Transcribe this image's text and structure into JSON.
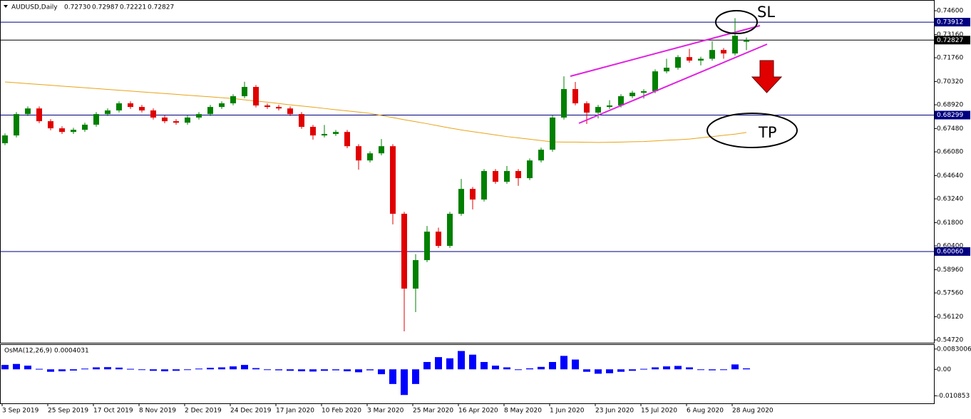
{
  "chart_data": [
    {
      "type": "candlestick",
      "title": "AUDUSD,Daily",
      "ohlc": [
        {
          "value": 0.7273,
          "label": "0.72730"
        },
        {
          "value": 0.72987,
          "label": "0.72987"
        },
        {
          "value": 0.72221,
          "label": "0.72221"
        },
        {
          "value": 0.72827,
          "label": "0.72827"
        }
      ],
      "categories": [
        "3 Sep 2019",
        null,
        null,
        null,
        "25 Sep 2019",
        null,
        null,
        null,
        "17 Oct 2019",
        null,
        null,
        null,
        "8 Nov 2019",
        null,
        null,
        null,
        "2 Dec 2019",
        null,
        null,
        null,
        "24 Dec 2019",
        null,
        null,
        null,
        "17 Jan 2020",
        null,
        null,
        null,
        "10 Feb 2020",
        null,
        null,
        null,
        "3 Mar 2020",
        null,
        null,
        null,
        "25 Mar 2020",
        null,
        null,
        null,
        "16 Apr 2020",
        null,
        null,
        null,
        "8 May 2020",
        null,
        null,
        null,
        "1 Jun 2020",
        null,
        null,
        null,
        "23 Jun 2020",
        null,
        null,
        null,
        "15 Jul 2020",
        null,
        null,
        null,
        "6 Aug 2020",
        null,
        null,
        null,
        "28 Aug 2020",
        null
      ],
      "open": [
        0.666,
        0.6707,
        0.6836,
        0.687,
        0.6793,
        0.675,
        0.6728,
        0.6741,
        0.6772,
        0.6836,
        0.6858,
        0.6901,
        0.6879,
        0.6858,
        0.6815,
        0.6793,
        0.6784,
        0.6815,
        0.6836,
        0.6879,
        0.6901,
        0.6944,
        0.7,
        0.6888,
        0.6879,
        0.687,
        0.6836,
        0.6759,
        0.6707,
        0.6716,
        0.6728,
        0.6642,
        0.6556,
        0.6599,
        0.6642,
        0.6234,
        0.5782,
        0.5954,
        0.6126,
        0.604,
        0.6234,
        0.6384,
        0.632,
        0.6492,
        0.6427,
        0.6492,
        0.6449,
        0.6556,
        0.6621,
        0.6815,
        0.6987,
        0.6901,
        0.6845,
        0.6879,
        0.6888,
        0.6944,
        0.6965,
        0.6974,
        0.7094,
        0.7116,
        0.718,
        0.7159,
        0.717,
        0.7223,
        0.7202,
        0.7273
      ],
      "high": [
        0.6719,
        0.6848,
        0.6882,
        0.6882,
        0.6805,
        0.6762,
        0.6753,
        0.6784,
        0.6848,
        0.687,
        0.6913,
        0.6913,
        0.6891,
        0.687,
        0.6827,
        0.6805,
        0.6827,
        0.6848,
        0.6891,
        0.6913,
        0.6956,
        0.7031,
        0.7012,
        0.69,
        0.6891,
        0.6882,
        0.6848,
        0.6771,
        0.677,
        0.674,
        0.674,
        0.6654,
        0.6611,
        0.6685,
        0.6654,
        0.6246,
        0.599,
        0.616,
        0.615,
        0.6246,
        0.6444,
        0.6396,
        0.6504,
        0.6504,
        0.6522,
        0.6504,
        0.6568,
        0.6633,
        0.6827,
        0.7064,
        0.703,
        0.6913,
        0.6891,
        0.692,
        0.6956,
        0.6977,
        0.6986,
        0.7106,
        0.717,
        0.7192,
        0.723,
        0.7182,
        0.7276,
        0.7235,
        0.7415,
        0.72987
      ],
      "low": [
        0.6648,
        0.6695,
        0.6824,
        0.6781,
        0.6738,
        0.6716,
        0.6716,
        0.6729,
        0.676,
        0.6824,
        0.6846,
        0.6867,
        0.6846,
        0.6803,
        0.6781,
        0.6772,
        0.6772,
        0.6803,
        0.6824,
        0.6867,
        0.6889,
        0.6932,
        0.6876,
        0.6867,
        0.6858,
        0.6824,
        0.6747,
        0.6682,
        0.6695,
        0.6704,
        0.663,
        0.65,
        0.6544,
        0.6587,
        0.617,
        0.5524,
        0.564,
        0.5942,
        0.6028,
        0.6028,
        0.6222,
        0.626,
        0.6308,
        0.6415,
        0.6415,
        0.6403,
        0.6437,
        0.6544,
        0.6609,
        0.6803,
        0.6889,
        0.6776,
        0.681,
        0.6867,
        0.6876,
        0.6932,
        0.693,
        0.6962,
        0.7082,
        0.7104,
        0.7147,
        0.713,
        0.7158,
        0.717,
        0.719,
        0.72221
      ],
      "close": [
        0.6707,
        0.6836,
        0.687,
        0.6793,
        0.675,
        0.6728,
        0.6741,
        0.6772,
        0.6836,
        0.6858,
        0.6901,
        0.6879,
        0.6858,
        0.6815,
        0.6793,
        0.6784,
        0.6815,
        0.6836,
        0.6879,
        0.6901,
        0.6944,
        0.7,
        0.6888,
        0.6879,
        0.687,
        0.6836,
        0.6759,
        0.6707,
        0.6716,
        0.6728,
        0.6642,
        0.6556,
        0.6599,
        0.6642,
        0.6234,
        0.5782,
        0.5954,
        0.6126,
        0.604,
        0.6234,
        0.6384,
        0.632,
        0.6492,
        0.6427,
        0.6492,
        0.6449,
        0.6556,
        0.6621,
        0.6815,
        0.6987,
        0.6901,
        0.6845,
        0.6879,
        0.6888,
        0.6944,
        0.6965,
        0.6974,
        0.7094,
        0.7116,
        0.718,
        0.7159,
        0.717,
        0.7223,
        0.7202,
        0.7309,
        0.72827
      ],
      "up_color": "#008000",
      "down_color": "#e00000",
      "ma": {
        "color": "#e8a317",
        "values": [
          0.703,
          0.7025,
          0.702,
          0.7015,
          0.701,
          0.7005,
          0.7,
          0.6995,
          0.699,
          0.6985,
          0.698,
          0.6975,
          0.697,
          0.6965,
          0.696,
          0.6955,
          0.695,
          0.6945,
          0.694,
          0.6935,
          0.693,
          0.6922,
          0.6915,
          0.6908,
          0.69,
          0.6892,
          0.6885,
          0.6878,
          0.687,
          0.6862,
          0.6855,
          0.6848,
          0.684,
          0.6828,
          0.6815,
          0.6802,
          0.679,
          0.6778,
          0.6765,
          0.6752,
          0.674,
          0.673,
          0.672,
          0.671,
          0.67,
          0.6692,
          0.6684,
          0.6676,
          0.6668,
          0.6667,
          0.6667,
          0.6666,
          0.6665,
          0.6666,
          0.6667,
          0.6669,
          0.667,
          0.6674,
          0.6678,
          0.6681,
          0.6685,
          0.6693,
          0.67,
          0.6708,
          0.6715,
          0.6725
        ]
      },
      "hlines": [
        {
          "value": 0.73912,
          "label": "0.73912",
          "color": "#000080"
        },
        {
          "value": 0.72827,
          "label": "0.72827",
          "color": "#000000"
        },
        {
          "value": 0.68299,
          "label": "0.68299",
          "color": "#000080"
        },
        {
          "value": 0.6006,
          "label": "0.60060",
          "color": "#000080"
        }
      ],
      "ylim": [
        0.5455,
        0.7512
      ],
      "yticks": [
        {
          "value": 0.746,
          "label": "0.74600"
        },
        {
          "value": 0.7316,
          "label": "0.73160"
        },
        {
          "value": 0.7176,
          "label": "0.71760"
        },
        {
          "value": 0.7032,
          "label": "0.70320"
        },
        {
          "value": 0.6892,
          "label": "0.68920"
        },
        {
          "value": 0.6748,
          "label": "0.67480"
        },
        {
          "value": 0.6608,
          "label": "0.66080"
        },
        {
          "value": 0.6464,
          "label": "0.64640"
        },
        {
          "value": 0.6324,
          "label": "0.63240"
        },
        {
          "value": 0.618,
          "label": "0.61800"
        },
        {
          "value": 0.604,
          "label": "0.60400"
        },
        {
          "value": 0.5896,
          "label": "0.58960"
        },
        {
          "value": 0.5756,
          "label": "0.57560"
        },
        {
          "value": 0.5612,
          "label": "0.56120"
        },
        {
          "value": 0.5472,
          "label": "0.54720"
        }
      ],
      "annotations": [
        "SL",
        "TP"
      ]
    },
    {
      "type": "bar",
      "title": "OsMA(12,26,9)",
      "current": 0.0004031,
      "color": "#0000ff",
      "values": [
        0.0018,
        0.0022,
        0.0015,
        0.0002,
        -0.001,
        -0.0008,
        -0.0005,
        0.0003,
        0.0008,
        0.0009,
        0.0007,
        0.0002,
        -0.0002,
        -0.0006,
        -0.0008,
        -0.0006,
        -0.0002,
        0.0003,
        0.0006,
        0.0008,
        0.0012,
        0.0018,
        0.0005,
        -0.0002,
        -0.0004,
        -0.0006,
        -0.0008,
        -0.0009,
        -0.0006,
        -0.0004,
        -0.0008,
        -0.0012,
        -0.0004,
        -0.002,
        -0.006,
        -0.0105,
        -0.006,
        0.003,
        0.005,
        0.0045,
        0.0075,
        0.006,
        0.003,
        0.0015,
        0.0008,
        -0.0002,
        0.0004,
        0.001,
        0.003,
        0.0055,
        0.004,
        -0.001,
        -0.0018,
        -0.0016,
        -0.001,
        -0.0006,
        0.0002,
        0.0008,
        0.0012,
        0.0014,
        0.0008,
        -0.0002,
        -0.0004,
        -0.0003,
        0.002,
        0.0004
      ],
      "ylim": [
        -0.0145,
        0.01
      ],
      "yticks": [
        0.0083006,
        {
          "value": 0,
          "label": "0.00"
        },
        -0.010853
      ]
    }
  ]
}
